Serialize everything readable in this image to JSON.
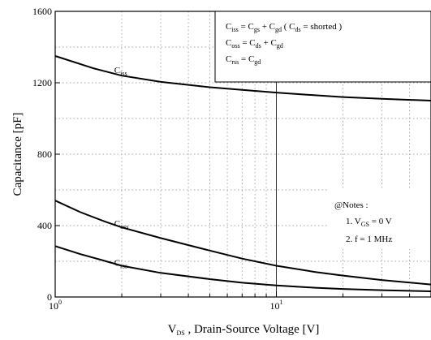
{
  "chart_data": {
    "type": "line",
    "x_scale": "log",
    "xlim": [
      1,
      50
    ],
    "ylim": [
      0,
      1600
    ],
    "xlabel_parts": [
      "V",
      "DS",
      " ,  Drain-Source Voltage [V]"
    ],
    "ylabel": "Capacitance   [pF]",
    "x_ticks": [
      {
        "value": 1,
        "base": "10",
        "exp": "0"
      },
      {
        "value": 10,
        "base": "10",
        "exp": "1"
      }
    ],
    "y_ticks": [
      0,
      400,
      800,
      1200,
      1600
    ],
    "grid": true,
    "series": [
      {
        "name": "Ciss",
        "label_main": "C",
        "label_sub": "iss",
        "label_at": [
          1.85,
          1255
        ],
        "points": [
          [
            1,
            1350
          ],
          [
            1.5,
            1280
          ],
          [
            2,
            1240
          ],
          [
            3,
            1205
          ],
          [
            5,
            1175
          ],
          [
            7,
            1160
          ],
          [
            10,
            1145
          ],
          [
            15,
            1130
          ],
          [
            20,
            1120
          ],
          [
            30,
            1110
          ],
          [
            50,
            1100
          ]
        ]
      },
      {
        "name": "Coss",
        "label_main": "C",
        "label_sub": "oss",
        "label_at": [
          1.85,
          395
        ],
        "points": [
          [
            1,
            540
          ],
          [
            1.3,
            475
          ],
          [
            1.7,
            420
          ],
          [
            2,
            390
          ],
          [
            3,
            330
          ],
          [
            5,
            260
          ],
          [
            7,
            215
          ],
          [
            10,
            175
          ],
          [
            15,
            140
          ],
          [
            20,
            120
          ],
          [
            30,
            95
          ],
          [
            50,
            70
          ]
        ]
      },
      {
        "name": "Crss",
        "label_main": "C",
        "label_sub": "rss",
        "label_at": [
          1.85,
          175
        ],
        "points": [
          [
            1,
            285
          ],
          [
            1.3,
            240
          ],
          [
            1.7,
            200
          ],
          [
            2,
            175
          ],
          [
            3,
            135
          ],
          [
            5,
            100
          ],
          [
            7,
            80
          ],
          [
            10,
            65
          ],
          [
            15,
            52
          ],
          [
            20,
            45
          ],
          [
            30,
            38
          ],
          [
            50,
            32
          ]
        ]
      }
    ],
    "marker_line_x": 10,
    "legend_lines": [
      [
        [
          "C",
          "iss"
        ],
        [
          "= C",
          "gs"
        ],
        [
          "+ C",
          "gd"
        ],
        [
          "( C",
          "ds"
        ],
        [
          "= shorted )",
          ""
        ]
      ],
      [
        [
          "C",
          "oss"
        ],
        [
          "= C",
          "ds"
        ],
        [
          "+ C",
          "gd"
        ]
      ],
      [
        [
          "C",
          "rss"
        ],
        [
          "= C",
          "gd"
        ]
      ]
    ],
    "notes_title": "@Notes :",
    "notes": [
      [
        [
          "1.  V",
          "GS"
        ],
        [
          "= 0  V",
          ""
        ]
      ],
      [
        [
          "2.  f  = 1 MHz",
          ""
        ]
      ]
    ]
  }
}
